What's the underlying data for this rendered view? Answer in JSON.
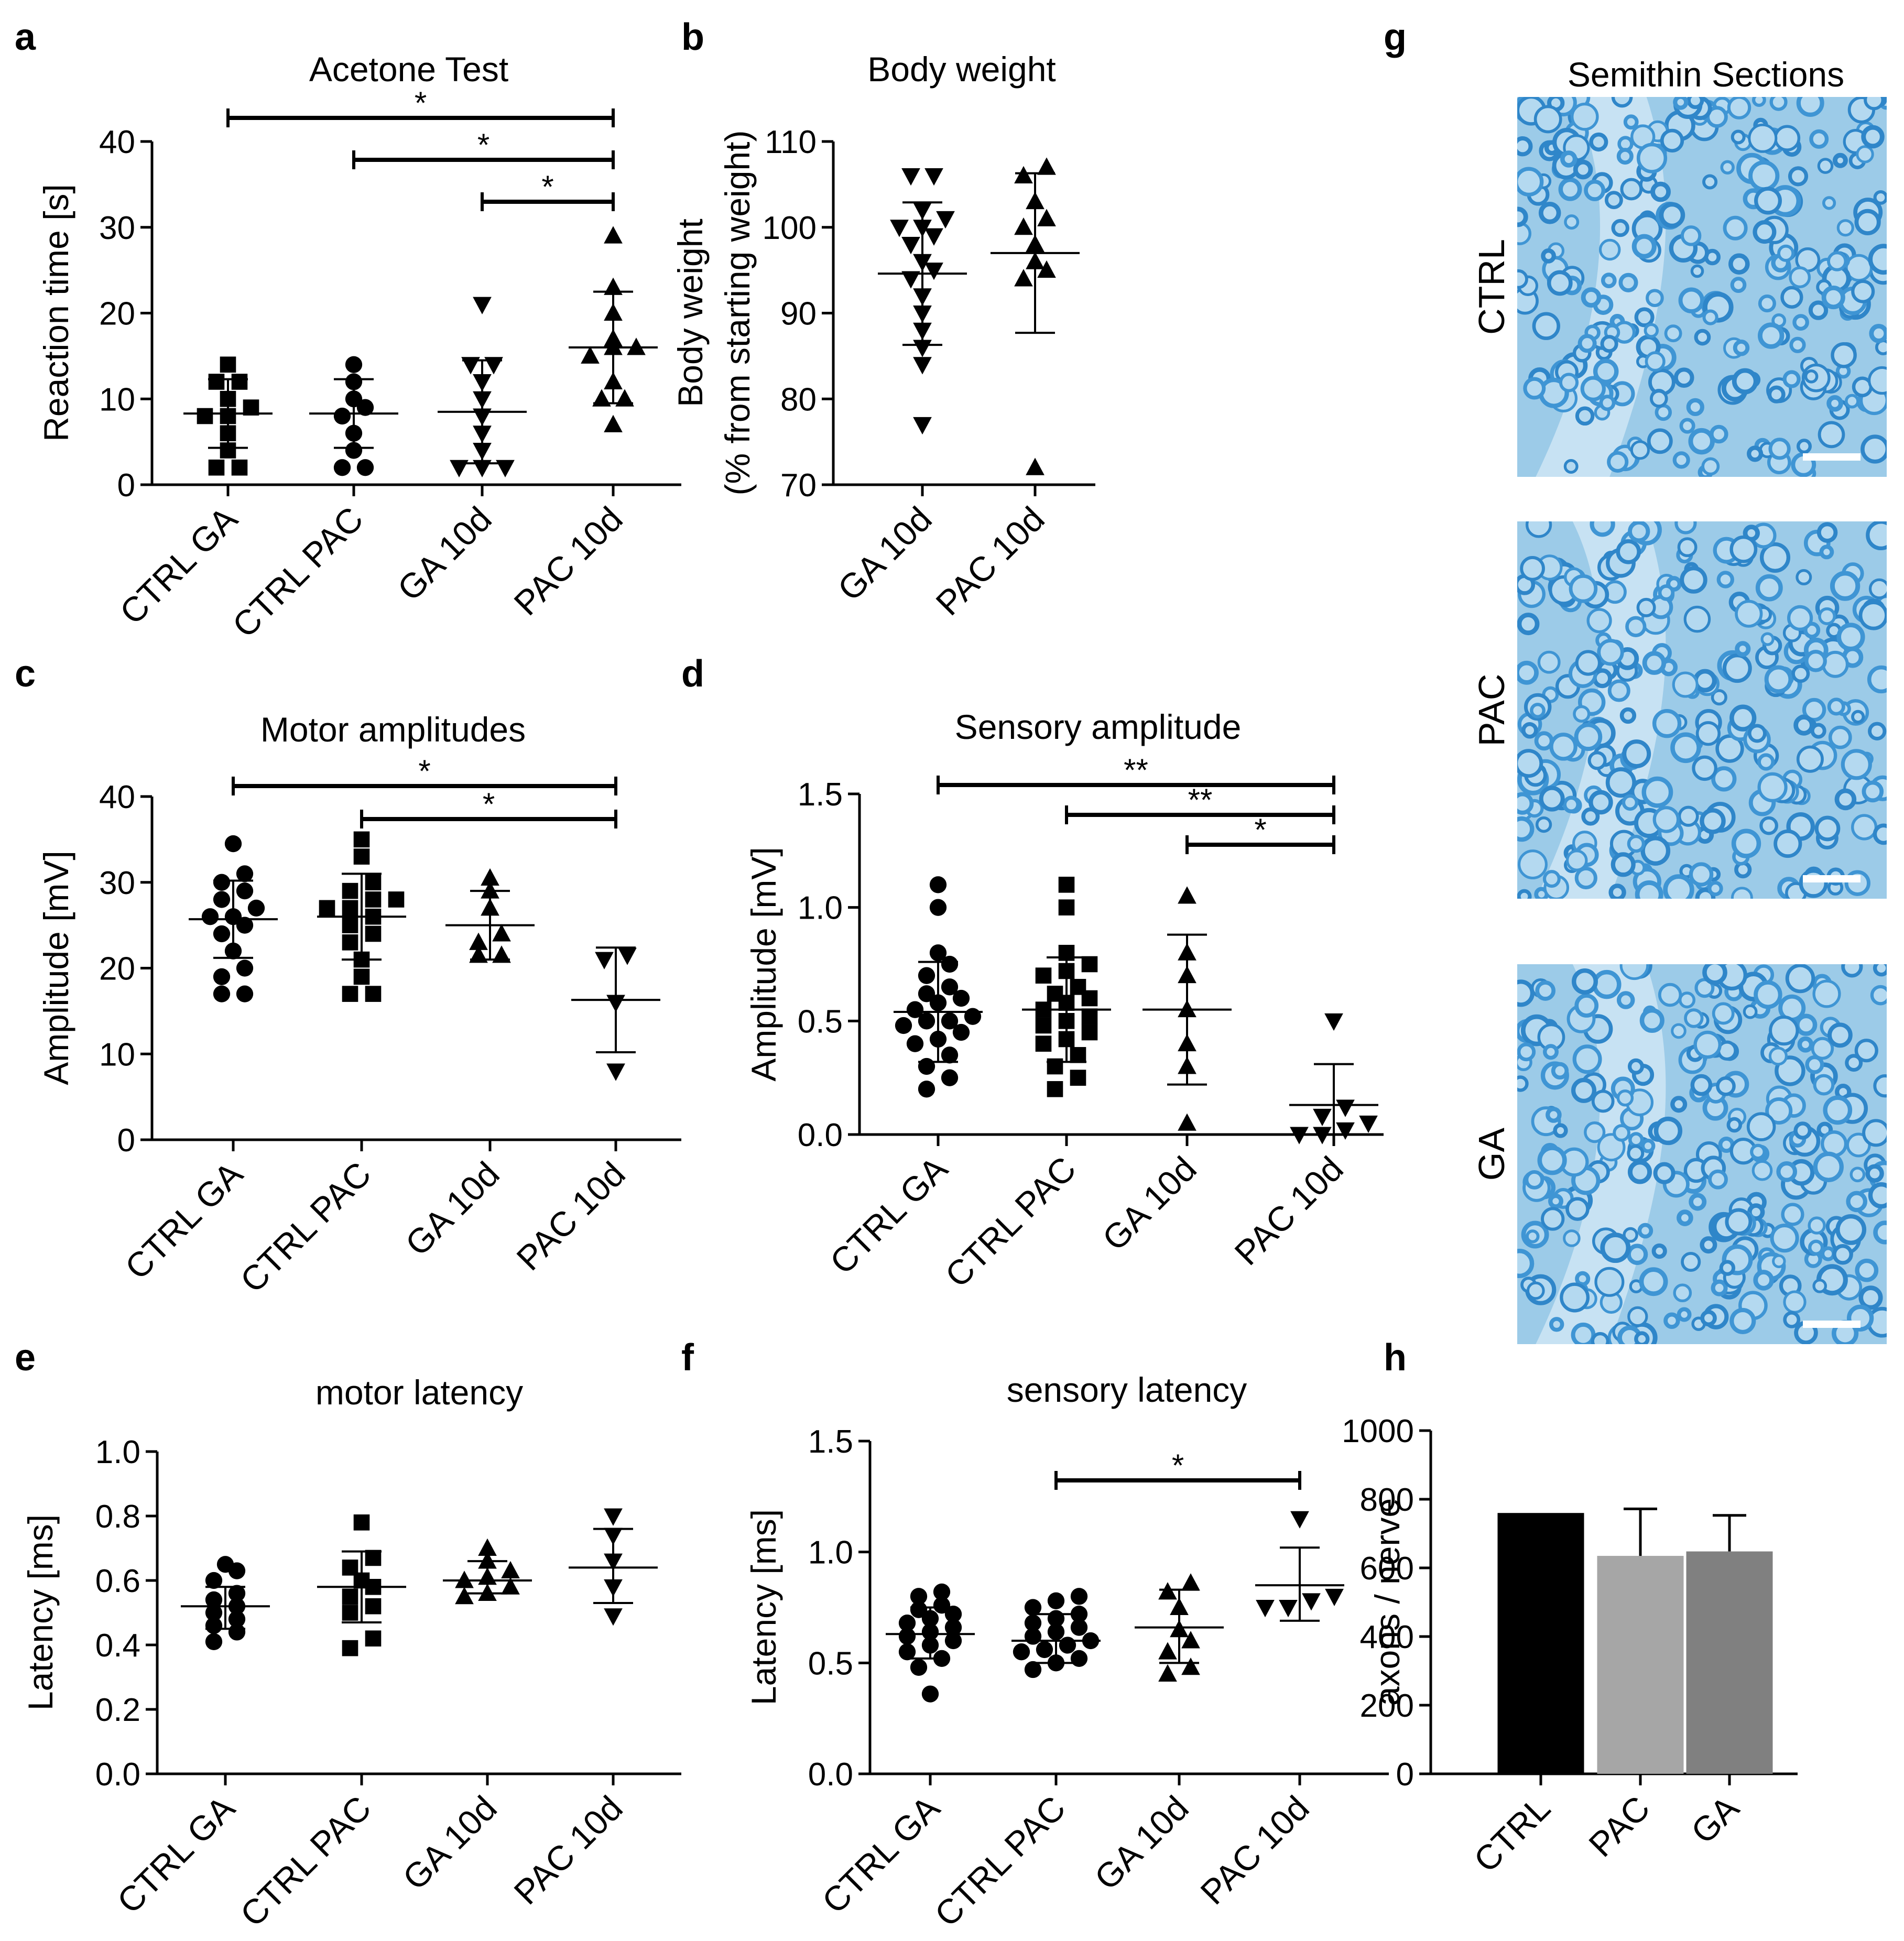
{
  "panel_letters": [
    "a",
    "b",
    "c",
    "d",
    "e",
    "f",
    "g",
    "h"
  ],
  "micrograph": {
    "title": "Semithin Sections",
    "labels": [
      "CTRL",
      "PAC",
      "GA"
    ]
  },
  "chart_data": [
    {
      "panel": "a",
      "type": "scatter",
      "title": "Acetone Test",
      "xlabel": "",
      "ylabel": "Reaction time [s]",
      "ylim": [
        0,
        40
      ],
      "yticks": [
        0,
        10,
        20,
        30,
        40
      ],
      "categories": [
        "CTRL GA",
        "CTRL PAC",
        "GA 10d",
        "PAC 10d"
      ],
      "markers": [
        "square",
        "circle",
        "triangle-down",
        "triangle-up"
      ],
      "groups": [
        {
          "points": [
            2,
            2,
            4,
            6,
            8,
            8,
            9,
            10,
            12,
            12,
            14
          ],
          "mean": 8.3,
          "sd_low": 4.3,
          "sd_high": 12.3
        },
        {
          "points": [
            2,
            2,
            4,
            6,
            8,
            9,
            10,
            12,
            14
          ],
          "mean": 8.3,
          "sd_low": 4.3,
          "sd_high": 12.3
        },
        {
          "points": [
            2,
            2,
            2,
            4,
            6,
            8,
            10,
            12,
            14,
            14,
            21
          ],
          "mean": 8.5,
          "sd_low": 2.5,
          "sd_high": 14.5
        },
        {
          "points": [
            7,
            10,
            10,
            12,
            15,
            16,
            16,
            17,
            20,
            23,
            29
          ],
          "mean": 16,
          "sd_low": 9.5,
          "sd_high": 22.5
        }
      ],
      "significance": [
        {
          "from": 0,
          "to": 3,
          "label": "*"
        },
        {
          "from": 1,
          "to": 3,
          "label": "*"
        },
        {
          "from": 2,
          "to": 3,
          "label": "*"
        }
      ]
    },
    {
      "panel": "b",
      "type": "scatter",
      "title": "Body weight",
      "xlabel": "",
      "ylabel": "Body weight",
      "ylabel2": "(% from starting weight)",
      "ylim": [
        70,
        110
      ],
      "yticks": [
        70,
        80,
        90,
        100,
        110
      ],
      "categories": [
        "GA 10d",
        "PAC 10d"
      ],
      "markers": [
        "triangle-down",
        "triangle-up"
      ],
      "groups": [
        {
          "points": [
            77,
            84,
            86,
            88,
            90,
            92,
            94,
            95,
            96,
            98,
            99,
            100,
            100,
            101,
            102,
            106,
            106
          ],
          "mean": 94.6,
          "sd_low": 86.3,
          "sd_high": 102.9
        },
        {
          "points": [
            72,
            94,
            95,
            96,
            98,
            100,
            101,
            103,
            106,
            107
          ],
          "mean": 97,
          "sd_low": 87.7,
          "sd_high": 106.3
        }
      ],
      "significance": []
    },
    {
      "panel": "c",
      "type": "scatter",
      "title": "Motor amplitudes",
      "xlabel": "",
      "ylabel": "Amplitude [mV]",
      "ylim": [
        0,
        40
      ],
      "yticks": [
        0,
        10,
        20,
        30,
        40
      ],
      "categories": [
        "CTRL GA",
        "CTRL PAC",
        "GA 10d",
        "PAC 10d"
      ],
      "markers": [
        "circle",
        "square",
        "triangle-up",
        "triangle-down"
      ],
      "groups": [
        {
          "points": [
            17,
            17,
            19,
            20,
            22,
            24,
            25,
            26,
            26,
            27,
            28,
            29,
            30,
            31,
            34.5
          ],
          "mean": 25.7,
          "sd_low": 21.2,
          "sd_high": 30.2
        },
        {
          "points": [
            17,
            17,
            19,
            21,
            23,
            24,
            25,
            26,
            27,
            27,
            28,
            28,
            29,
            30,
            33,
            35
          ],
          "mean": 26,
          "sd_low": 21,
          "sd_high": 31
        },
        {
          "points": [
            21.5,
            21.5,
            23,
            24,
            27,
            29,
            30.5
          ],
          "mean": 25,
          "sd_low": 21,
          "sd_high": 29
        },
        {
          "points": [
            8,
            16,
            21,
            21.5
          ],
          "mean": 16.3,
          "sd_low": 10.2,
          "sd_high": 22.4
        }
      ],
      "significance": [
        {
          "from": 0,
          "to": 3,
          "label": "*"
        },
        {
          "from": 1,
          "to": 3,
          "label": "*"
        }
      ]
    },
    {
      "panel": "d",
      "type": "scatter",
      "title": "Sensory amplitude",
      "xlabel": "",
      "ylabel": "Amplitude [mV]",
      "ylim": [
        0,
        1.5
      ],
      "yticks": [
        0.0,
        0.5,
        1.0,
        1.5
      ],
      "categories": [
        "CTRL GA",
        "CTRL PAC",
        "GA 10d",
        "PAC 10d"
      ],
      "markers": [
        "circle",
        "square",
        "triangle-up",
        "triangle-down"
      ],
      "groups": [
        {
          "points": [
            0.2,
            0.25,
            0.3,
            0.35,
            0.4,
            0.42,
            0.45,
            0.48,
            0.5,
            0.5,
            0.52,
            0.55,
            0.58,
            0.6,
            0.62,
            0.65,
            0.7,
            0.75,
            0.8,
            1.0,
            1.1
          ],
          "mean": 0.54,
          "sd_low": 0.32,
          "sd_high": 0.76
        },
        {
          "points": [
            0.2,
            0.25,
            0.3,
            0.35,
            0.4,
            0.42,
            0.45,
            0.48,
            0.5,
            0.52,
            0.55,
            0.58,
            0.6,
            0.62,
            0.65,
            0.7,
            0.72,
            0.75,
            0.8,
            1.0,
            1.1
          ],
          "mean": 0.55,
          "sd_low": 0.32,
          "sd_high": 0.78
        },
        {
          "points": [
            0.05,
            0.3,
            0.4,
            0.55,
            0.7,
            0.8,
            1.05
          ],
          "mean": 0.55,
          "sd_low": 0.22,
          "sd_high": 0.88
        },
        {
          "points": [
            0.0,
            0.0,
            0.02,
            0.05,
            0.08,
            0.12,
            0.5
          ],
          "mean": 0.13,
          "sd_low": -0.05,
          "sd_high": 0.31
        }
      ],
      "significance": [
        {
          "from": 0,
          "to": 3,
          "label": "**"
        },
        {
          "from": 1,
          "to": 3,
          "label": "**"
        },
        {
          "from": 2,
          "to": 3,
          "label": "*"
        }
      ]
    },
    {
      "panel": "e",
      "type": "scatter",
      "title": "motor latency",
      "xlabel": "",
      "ylabel": "Latency [ms]",
      "ylim": [
        0,
        1.0
      ],
      "yticks": [
        0.0,
        0.2,
        0.4,
        0.6,
        0.8,
        1.0
      ],
      "categories": [
        "CTRL GA",
        "CTRL PAC",
        "GA 10d",
        "PAC 10d"
      ],
      "markers": [
        "circle",
        "square",
        "triangle-up",
        "triangle-down"
      ],
      "groups": [
        {
          "points": [
            0.41,
            0.44,
            0.46,
            0.48,
            0.5,
            0.52,
            0.54,
            0.56,
            0.6,
            0.63,
            0.65
          ],
          "mean": 0.52,
          "sd_low": 0.45,
          "sd_high": 0.58
        },
        {
          "points": [
            0.39,
            0.42,
            0.5,
            0.52,
            0.55,
            0.58,
            0.6,
            0.64,
            0.67,
            0.78
          ],
          "mean": 0.58,
          "sd_low": 0.47,
          "sd_high": 0.69
        },
        {
          "points": [
            0.55,
            0.56,
            0.58,
            0.6,
            0.61,
            0.63,
            0.66,
            0.7
          ],
          "mean": 0.6,
          "sd_low": 0.56,
          "sd_high": 0.66
        },
        {
          "points": [
            0.49,
            0.58,
            0.66,
            0.74,
            0.8
          ],
          "mean": 0.64,
          "sd_low": 0.53,
          "sd_high": 0.76
        }
      ],
      "significance": []
    },
    {
      "panel": "f",
      "type": "scatter",
      "title": "sensory latency",
      "xlabel": "",
      "ylabel": "Latency [ms]",
      "ylim": [
        0,
        1.5
      ],
      "yticks": [
        0.0,
        0.5,
        1.0,
        1.5
      ],
      "categories": [
        "CTRL GA",
        "CTRL PAC",
        "GA 10d",
        "PAC 10d"
      ],
      "markers": [
        "circle",
        "circle",
        "triangle-up",
        "triangle-down"
      ],
      "groups": [
        {
          "points": [
            0.36,
            0.48,
            0.52,
            0.55,
            0.58,
            0.6,
            0.62,
            0.64,
            0.66,
            0.68,
            0.7,
            0.72,
            0.74,
            0.76,
            0.8,
            0.82
          ],
          "mean": 0.63,
          "sd_low": 0.52,
          "sd_high": 0.75
        },
        {
          "points": [
            0.47,
            0.5,
            0.52,
            0.55,
            0.56,
            0.58,
            0.6,
            0.62,
            0.64,
            0.66,
            0.68,
            0.7,
            0.72,
            0.75,
            0.78,
            0.8
          ],
          "mean": 0.6,
          "sd_low": 0.5,
          "sd_high": 0.72
        },
        {
          "points": [
            0.45,
            0.48,
            0.55,
            0.6,
            0.65,
            0.75,
            0.82,
            0.86
          ],
          "mean": 0.66,
          "sd_low": 0.5,
          "sd_high": 0.83
        },
        {
          "points": [
            0.75,
            0.75,
            0.78,
            0.8,
            1.15
          ],
          "mean": 0.85,
          "sd_low": 0.69,
          "sd_high": 1.02
        }
      ],
      "significance": [
        {
          "from": 1,
          "to": 3,
          "label": "*"
        }
      ]
    },
    {
      "panel": "h",
      "type": "bar",
      "title": "",
      "xlabel": "",
      "ylabel": "axons / nerve",
      "ylim": [
        0,
        1000
      ],
      "yticks": [
        0,
        200,
        400,
        600,
        800,
        1000
      ],
      "categories": [
        "CTRL",
        "PAC",
        "GA"
      ],
      "values": [
        760,
        635,
        648
      ],
      "errors": [
        0,
        137,
        105
      ],
      "colors": [
        "#000000",
        "#a6a6a6",
        "#808080"
      ]
    }
  ]
}
